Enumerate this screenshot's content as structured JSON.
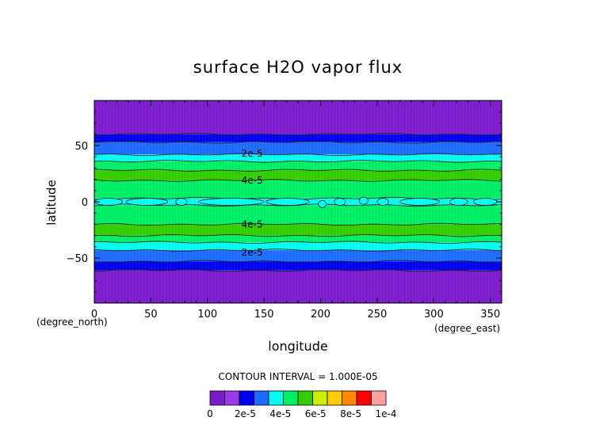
{
  "chart_data": {
    "type": "heatmap",
    "title": "surface H2O vapor flux",
    "xlabel": "longitude",
    "ylabel": "latitude",
    "x_units": "(degree_east)",
    "y_units": "(degree_north)",
    "xlim": [
      0,
      360
    ],
    "ylim": [
      -90,
      90
    ],
    "x_ticks": [
      0,
      50,
      100,
      150,
      200,
      250,
      300,
      350
    ],
    "y_ticks": [
      -50,
      0,
      50
    ],
    "contour_interval_text": "CONTOUR INTERVAL = 1.000E-05",
    "contour_labels": [
      {
        "text": "2e-5",
        "lon": 130,
        "lat": 43
      },
      {
        "text": "4e-5",
        "lon": 130,
        "lat": 19
      },
      {
        "text": "4e-5",
        "lon": 130,
        "lat": -20
      },
      {
        "text": "2e-5",
        "lon": 130,
        "lat": -45
      }
    ],
    "bands": [
      {
        "lat_from": 60,
        "lat_to": 90,
        "level": 0
      },
      {
        "lat_from": 53,
        "lat_to": 60,
        "level": 1
      },
      {
        "lat_from": 42,
        "lat_to": 53,
        "level": 2
      },
      {
        "lat_from": 36,
        "lat_to": 42,
        "level": 3
      },
      {
        "lat_from": 28,
        "lat_to": 36,
        "level": 4
      },
      {
        "lat_from": 19,
        "lat_to": 28,
        "level": 5
      },
      {
        "lat_from": 3,
        "lat_to": 19,
        "level": 6
      },
      {
        "lat_from": -3,
        "lat_to": 3,
        "level": 7
      },
      {
        "lat_from": -20,
        "lat_to": -3,
        "level": 6
      },
      {
        "lat_from": -30,
        "lat_to": -20,
        "level": 5
      },
      {
        "lat_from": -36,
        "lat_to": -30,
        "level": 4
      },
      {
        "lat_from": -43,
        "lat_to": -36,
        "level": 3
      },
      {
        "lat_from": -53,
        "lat_to": -43,
        "level": 2
      },
      {
        "lat_from": -61,
        "lat_to": -53,
        "level": 1
      },
      {
        "lat_from": -90,
        "lat_to": -61,
        "level": 0
      }
    ],
    "equatorial_patches": [
      {
        "lon_from": 0,
        "lon_to": 25,
        "lat": 0
      },
      {
        "lon_from": 28,
        "lon_to": 65,
        "lat": 0
      },
      {
        "lon_from": 72,
        "lon_to": 82,
        "lat": 0
      },
      {
        "lon_from": 92,
        "lon_to": 150,
        "lat": 0
      },
      {
        "lon_from": 152,
        "lon_to": 190,
        "lat": 0
      },
      {
        "lon_from": 198,
        "lon_to": 205,
        "lat": -2
      },
      {
        "lon_from": 212,
        "lon_to": 222,
        "lat": 0
      },
      {
        "lon_from": 234,
        "lon_to": 242,
        "lat": 1
      },
      {
        "lon_from": 250,
        "lon_to": 260,
        "lat": 0
      },
      {
        "lon_from": 270,
        "lon_to": 305,
        "lat": 0
      },
      {
        "lon_from": 314,
        "lon_to": 330,
        "lat": 0
      },
      {
        "lon_from": 335,
        "lon_to": 356,
        "lat": 0
      }
    ],
    "colorbar": {
      "colors": [
        "#7A1BCC",
        "#9B3BE6",
        "#0000F0",
        "#1E6BFF",
        "#00FFF0",
        "#00EE66",
        "#33CC00",
        "#CCEE00",
        "#FFCC00",
        "#FF8800",
        "#FF0000",
        "#FFA0A0"
      ],
      "tick_labels": [
        "0",
        "2e-5",
        "4e-5",
        "6e-5",
        "8e-5",
        "1e-4"
      ],
      "band_colors": [
        "#7A1BCC",
        "#0000F0",
        "#1E6BFF",
        "#00FFF0",
        "#00EE66",
        "#33CC00",
        "#00EE66",
        "#00FFF0"
      ]
    }
  }
}
